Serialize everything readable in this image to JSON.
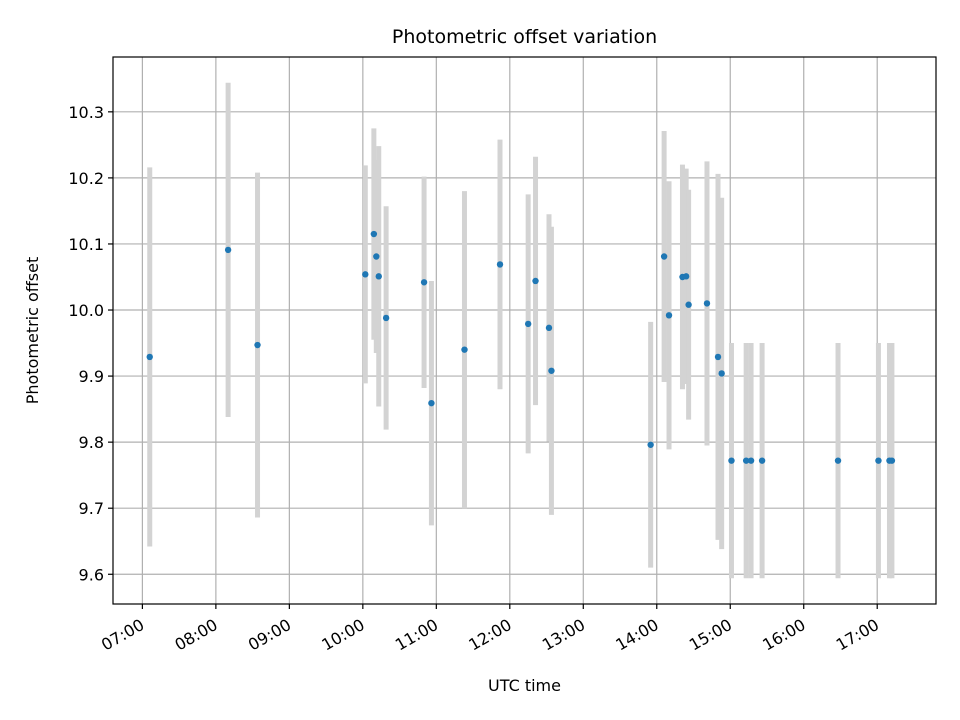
{
  "chart_data": {
    "type": "scatter",
    "title": "Photometric offset variation",
    "xlabel": "UTC time",
    "ylabel": "Photometric offset",
    "x_unit": "hours (UTC)",
    "xlim": [
      "06:36",
      "17:48"
    ],
    "ylim": [
      9.555,
      10.383
    ],
    "grid": true,
    "x_ticks": [
      "07:00",
      "08:00",
      "09:00",
      "10:00",
      "11:00",
      "12:00",
      "13:00",
      "14:00",
      "15:00",
      "16:00",
      "17:00"
    ],
    "y_ticks": [
      "9.6",
      "9.7",
      "9.8",
      "9.9",
      "10.0",
      "10.1",
      "10.2",
      "10.3"
    ],
    "colors": {
      "point": "#1f77b4",
      "errorbar": "#d3d3d3",
      "grid": "#b0b0b0"
    },
    "points": [
      {
        "x": "07:06",
        "y": 9.929,
        "ylow": 9.642,
        "yhigh": 10.216
      },
      {
        "x": "08:10",
        "y": 10.091,
        "ylow": 9.838,
        "yhigh": 10.344
      },
      {
        "x": "08:34",
        "y": 9.947,
        "ylow": 9.686,
        "yhigh": 10.208
      },
      {
        "x": "10:02",
        "y": 10.054,
        "ylow": 9.889,
        "yhigh": 10.219
      },
      {
        "x": "10:09",
        "y": 10.115,
        "ylow": 9.955,
        "yhigh": 10.275
      },
      {
        "x": "10:11",
        "y": 10.081,
        "ylow": 9.935,
        "yhigh": 10.227
      },
      {
        "x": "10:13",
        "y": 10.051,
        "ylow": 9.854,
        "yhigh": 10.248
      },
      {
        "x": "10:19",
        "y": 9.988,
        "ylow": 9.819,
        "yhigh": 10.157
      },
      {
        "x": "10:50",
        "y": 10.042,
        "ylow": 9.882,
        "yhigh": 10.202
      },
      {
        "x": "10:56",
        "y": 9.859,
        "ylow": 9.674,
        "yhigh": 10.044
      },
      {
        "x": "11:23",
        "y": 9.94,
        "ylow": 9.7,
        "yhigh": 10.18
      },
      {
        "x": "11:52",
        "y": 10.069,
        "ylow": 9.88,
        "yhigh": 10.258
      },
      {
        "x": "12:15",
        "y": 9.979,
        "ylow": 9.783,
        "yhigh": 10.175
      },
      {
        "x": "12:21",
        "y": 10.044,
        "ylow": 9.856,
        "yhigh": 10.232
      },
      {
        "x": "12:32",
        "y": 9.973,
        "ylow": 9.801,
        "yhigh": 10.145
      },
      {
        "x": "12:34",
        "y": 9.908,
        "ylow": 9.69,
        "yhigh": 10.126
      },
      {
        "x": "13:55",
        "y": 9.796,
        "ylow": 9.61,
        "yhigh": 9.982
      },
      {
        "x": "14:06",
        "y": 10.081,
        "ylow": 9.891,
        "yhigh": 10.271
      },
      {
        "x": "14:10",
        "y": 9.992,
        "ylow": 9.789,
        "yhigh": 10.195
      },
      {
        "x": "14:21",
        "y": 10.05,
        "ylow": 9.88,
        "yhigh": 10.22
      },
      {
        "x": "14:24",
        "y": 10.051,
        "ylow": 9.888,
        "yhigh": 10.214
      },
      {
        "x": "14:26",
        "y": 10.008,
        "ylow": 9.834,
        "yhigh": 10.182
      },
      {
        "x": "14:41",
        "y": 10.01,
        "ylow": 9.795,
        "yhigh": 10.225
      },
      {
        "x": "14:50",
        "y": 9.929,
        "ylow": 9.652,
        "yhigh": 10.206
      },
      {
        "x": "14:53",
        "y": 9.904,
        "ylow": 9.638,
        "yhigh": 10.17
      },
      {
        "x": "15:01",
        "y": 9.772,
        "ylow": 9.594,
        "yhigh": 9.95
      },
      {
        "x": "15:13",
        "y": 9.772,
        "ylow": 9.594,
        "yhigh": 9.95
      },
      {
        "x": "15:17",
        "y": 9.772,
        "ylow": 9.594,
        "yhigh": 9.95
      },
      {
        "x": "15:26",
        "y": 9.772,
        "ylow": 9.594,
        "yhigh": 9.95
      },
      {
        "x": "16:28",
        "y": 9.772,
        "ylow": 9.594,
        "yhigh": 9.95
      },
      {
        "x": "17:01",
        "y": 9.772,
        "ylow": 9.594,
        "yhigh": 9.95
      },
      {
        "x": "17:10",
        "y": 9.772,
        "ylow": 9.594,
        "yhigh": 9.95
      },
      {
        "x": "17:12",
        "y": 9.772,
        "ylow": 9.594,
        "yhigh": 9.95
      }
    ]
  }
}
